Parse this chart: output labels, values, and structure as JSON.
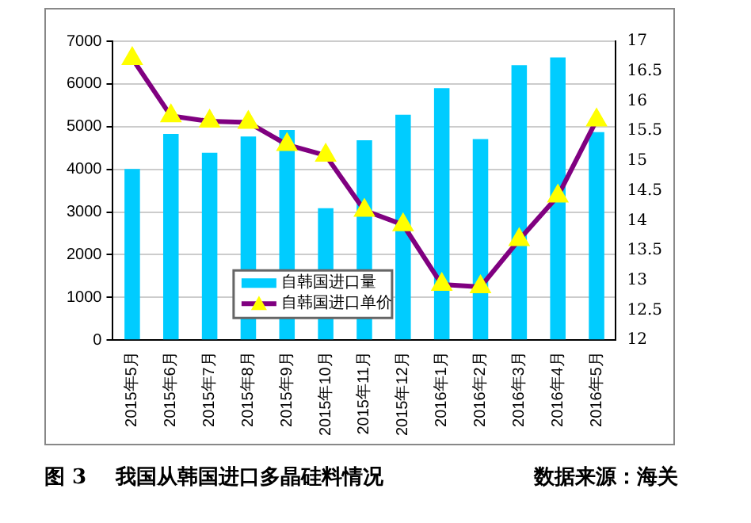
{
  "chart_data": {
    "type": "bar",
    "title": "我国从韩国进口多晶硅料情况",
    "subtitle": "图 3",
    "annotations": [
      "数据来源：海关"
    ],
    "categories": [
      "2015年5月",
      "2015年6月",
      "2015年7月",
      "2015年8月",
      "2015年9月",
      "2015年10月",
      "2015年11月",
      "2015年12月",
      "2016年1月",
      "2016年2月",
      "2016年3月",
      "2016年4月",
      "2016年5月"
    ],
    "series": [
      {
        "name": "自韩国进口量",
        "color": "#00ccff",
        "values": [
          4010,
          4830,
          4390,
          4770,
          4920,
          3090,
          4680,
          5280,
          5900,
          4710,
          6440,
          6620,
          4870
        ]
      },
      {
        "name": "自韩国进口单价",
        "type": "line",
        "axis": "y2",
        "color": "#800080",
        "marker": "triangle",
        "values": [
          16.71,
          15.75,
          15.66,
          15.64,
          15.27,
          15.09,
          14.17,
          13.93,
          12.93,
          12.89,
          13.68,
          14.41,
          15.68
        ]
      }
    ],
    "ylim": [
      0,
      7000
    ],
    "yticks": [
      0,
      1000,
      2000,
      3000,
      4000,
      5000,
      6000,
      7000
    ],
    "y2lim": [
      12,
      17
    ],
    "y2ticks": [
      12,
      {
        "value": 12.5,
        "label": "12.5"
      },
      13,
      {
        "value": 13.5,
        "label": "13.5"
      },
      14,
      {
        "value": 14.5,
        "label": "14.5"
      },
      15,
      {
        "value": 15.5,
        "label": "15.5"
      },
      16,
      {
        "value": 16.5,
        "label": "16.5"
      },
      17
    ],
    "grid": "y",
    "legend": "bottom"
  }
}
